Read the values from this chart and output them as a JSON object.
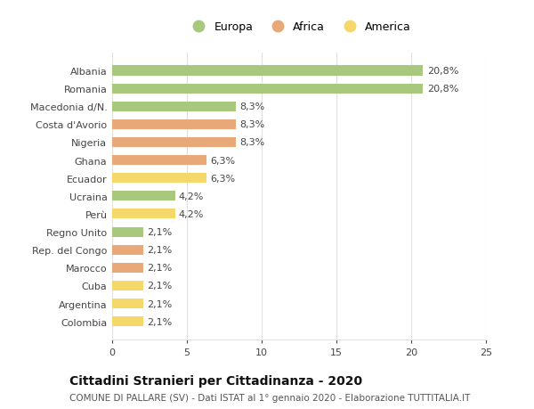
{
  "countries": [
    "Albania",
    "Romania",
    "Macedonia d/N.",
    "Costa d'Avorio",
    "Nigeria",
    "Ghana",
    "Ecuador",
    "Ucraina",
    "Perù",
    "Regno Unito",
    "Rep. del Congo",
    "Marocco",
    "Cuba",
    "Argentina",
    "Colombia"
  ],
  "values": [
    20.8,
    20.8,
    8.3,
    8.3,
    8.3,
    6.3,
    6.3,
    4.2,
    4.2,
    2.1,
    2.1,
    2.1,
    2.1,
    2.1,
    2.1
  ],
  "continents": [
    "Europa",
    "Europa",
    "Europa",
    "Africa",
    "Africa",
    "Africa",
    "America",
    "Europa",
    "America",
    "Europa",
    "Africa",
    "Africa",
    "America",
    "America",
    "America"
  ],
  "colors": {
    "Europa": "#a8c87e",
    "Africa": "#e8a878",
    "America": "#f5d76a"
  },
  "legend_order": [
    "Europa",
    "Africa",
    "America"
  ],
  "labels": [
    "20,8%",
    "20,8%",
    "8,3%",
    "8,3%",
    "8,3%",
    "6,3%",
    "6,3%",
    "4,2%",
    "4,2%",
    "2,1%",
    "2,1%",
    "2,1%",
    "2,1%",
    "2,1%",
    "2,1%"
  ],
  "xlim": [
    0,
    25
  ],
  "xticks": [
    0,
    5,
    10,
    15,
    20,
    25
  ],
  "title": "Cittadini Stranieri per Cittadinanza - 2020",
  "subtitle": "COMUNE DI PALLARE (SV) - Dati ISTAT al 1° gennaio 2020 - Elaborazione TUTTITALIA.IT",
  "background_color": "#ffffff",
  "grid_color": "#e0e0e0",
  "bar_height": 0.55,
  "title_fontsize": 10,
  "subtitle_fontsize": 7.5,
  "tick_fontsize": 8,
  "label_fontsize": 8,
  "legend_fontsize": 9
}
